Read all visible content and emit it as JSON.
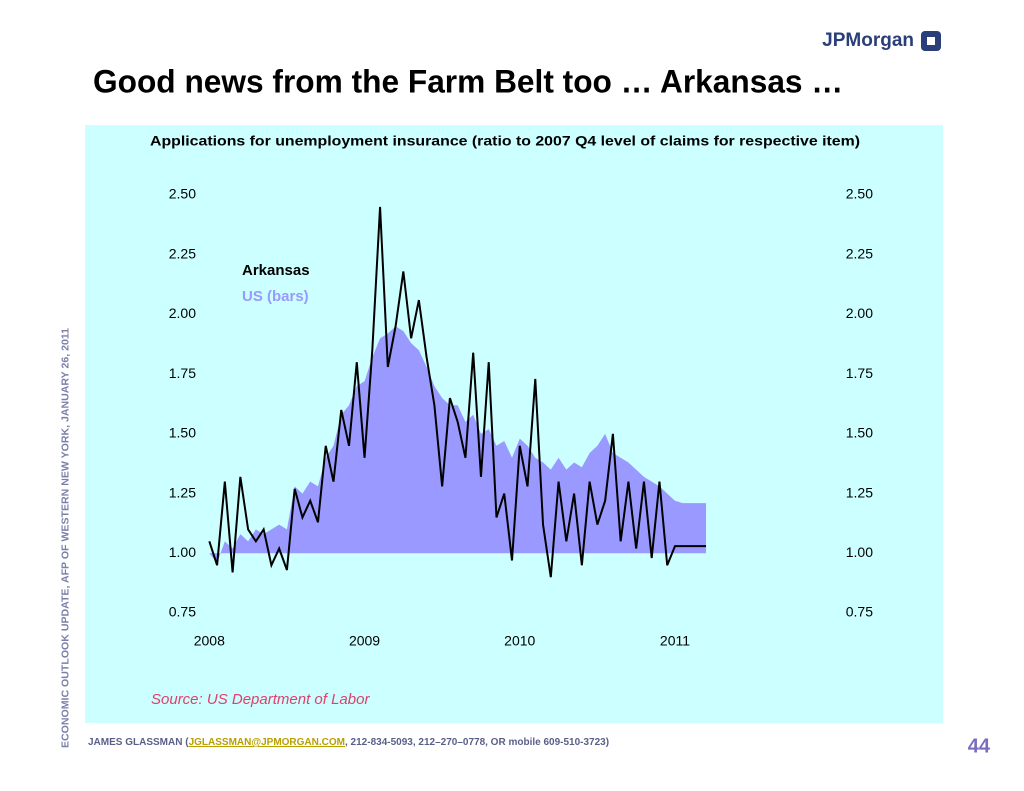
{
  "header": {
    "logo": "JPMorgan",
    "title": "Good news from the Farm Belt too … Arkansas …"
  },
  "side_text": "ECONOMIC OUTLOOK UPDATE, AFP OF WESTERN NEW YORK, JANUARY 26, 2011",
  "chart_data": {
    "type": "line",
    "title": "Applications for unemployment insurance (ratio to 2007 Q4 level of claims for respective item)",
    "source": "Source: US Department of Labor",
    "x": [
      2008.0,
      2008.05,
      2008.1,
      2008.15,
      2008.2,
      2008.25,
      2008.3,
      2008.35,
      2008.4,
      2008.45,
      2008.5,
      2008.55,
      2008.6,
      2008.65,
      2008.7,
      2008.75,
      2008.8,
      2008.85,
      2008.9,
      2008.95,
      2009.0,
      2009.05,
      2009.1,
      2009.15,
      2009.2,
      2009.25,
      2009.3,
      2009.35,
      2009.4,
      2009.45,
      2009.5,
      2009.55,
      2009.6,
      2009.65,
      2009.7,
      2009.75,
      2009.8,
      2009.85,
      2009.9,
      2009.95,
      2010.0,
      2010.05,
      2010.1,
      2010.15,
      2010.2,
      2010.25,
      2010.3,
      2010.35,
      2010.4,
      2010.45,
      2010.5,
      2010.55,
      2010.6,
      2010.65,
      2010.7,
      2010.75,
      2010.8,
      2010.85,
      2010.9,
      2010.95,
      2011.0,
      2011.05,
      2011.1,
      2011.15,
      2011.2
    ],
    "series": [
      {
        "name": "Arkansas",
        "color": "#000000",
        "style": "line",
        "values": [
          1.05,
          0.95,
          1.3,
          0.92,
          1.32,
          1.1,
          1.05,
          1.1,
          0.95,
          1.02,
          0.93,
          1.27,
          1.15,
          1.22,
          1.13,
          1.45,
          1.3,
          1.6,
          1.45,
          1.8,
          1.4,
          1.85,
          2.45,
          1.78,
          1.95,
          2.18,
          1.9,
          2.06,
          1.82,
          1.62,
          1.28,
          1.65,
          1.55,
          1.4,
          1.84,
          1.32,
          1.8,
          1.15,
          1.25,
          0.97,
          1.45,
          1.28,
          1.73,
          1.12,
          0.9,
          1.3,
          1.05,
          1.25,
          0.95,
          1.3,
          1.12,
          1.22,
          1.5,
          1.05,
          1.3,
          1.02,
          1.3,
          0.98,
          1.3,
          0.95,
          1.03,
          1.03,
          1.03,
          1.03,
          1.03
        ]
      },
      {
        "name": "US (bars)",
        "color": "#9999ff",
        "style": "bars",
        "values": [
          1.0,
          0.96,
          1.05,
          1.02,
          1.08,
          1.05,
          1.1,
          1.08,
          1.1,
          1.12,
          1.1,
          1.28,
          1.25,
          1.3,
          1.28,
          1.4,
          1.45,
          1.58,
          1.62,
          1.7,
          1.72,
          1.82,
          1.9,
          1.92,
          1.95,
          1.93,
          1.88,
          1.85,
          1.78,
          1.7,
          1.65,
          1.62,
          1.62,
          1.55,
          1.58,
          1.5,
          1.52,
          1.45,
          1.47,
          1.4,
          1.48,
          1.45,
          1.4,
          1.38,
          1.35,
          1.4,
          1.35,
          1.38,
          1.36,
          1.42,
          1.45,
          1.5,
          1.42,
          1.4,
          1.38,
          1.35,
          1.32,
          1.3,
          1.28,
          1.25,
          1.22,
          1.21,
          1.21,
          1.21,
          1.21
        ]
      }
    ],
    "bar_baseline": 1,
    "xlim": [
      2007.94,
      2011.29
    ],
    "xticks": [
      2008,
      2009,
      2010,
      2011
    ],
    "ylim": [
      0.75,
      2.5
    ],
    "yticks": [
      {
        "value": 0.75,
        "label": "0.75"
      },
      {
        "value": 1,
        "label": "1.00"
      },
      {
        "value": 1.25,
        "label": "1.25"
      },
      {
        "value": 1.5,
        "label": "1.50"
      },
      {
        "value": 1.75,
        "label": "1.75"
      },
      {
        "value": 2,
        "label": "2.00"
      },
      {
        "value": 2.25,
        "label": "2.25"
      },
      {
        "value": 2.5,
        "label": "2.50"
      }
    ],
    "y2lim": [
      0.75,
      2.5
    ],
    "y2ticks": [
      {
        "value": 0.75,
        "label": "0.75"
      },
      {
        "value": 1,
        "label": "1.00"
      },
      {
        "value": 1.25,
        "label": "1.25"
      },
      {
        "value": 1.5,
        "label": "1.50"
      },
      {
        "value": 1.75,
        "label": "1.75"
      },
      {
        "value": 2,
        "label": "2.00"
      },
      {
        "value": 2.25,
        "label": "2.25"
      },
      {
        "value": 2.5,
        "label": "2.50"
      }
    ],
    "grid": false
  },
  "footer": {
    "prefix": "JAMES GLASSMAN (",
    "email": "JGLASSMAN@JPMORGAN.COM",
    "suffix": ", 212-834-5093, 212–270–0778, OR mobile 609-510-3723)",
    "page": "44"
  }
}
